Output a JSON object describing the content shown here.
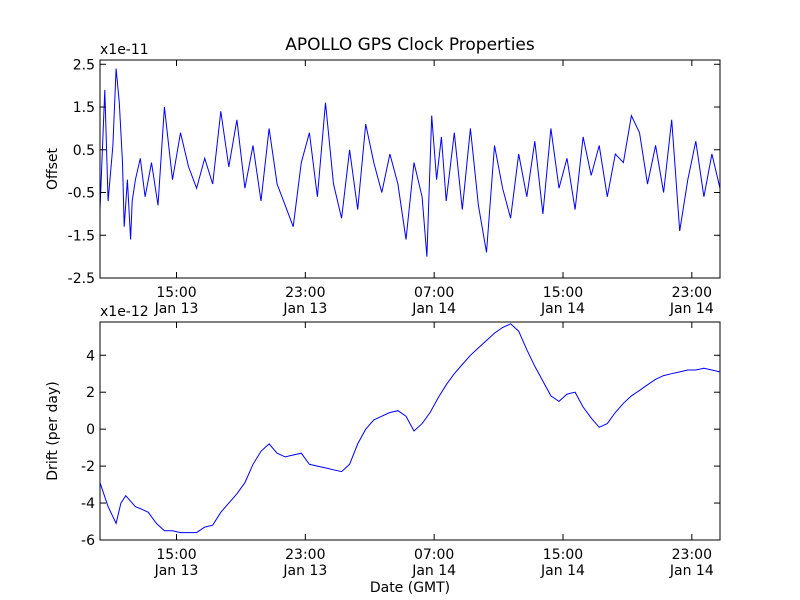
{
  "title": "APOLLO GPS Clock Properties",
  "colors": {
    "line": "#0000ff",
    "axes": "#000000",
    "background": "#ffffff"
  },
  "chart_data": [
    {
      "type": "line",
      "title": "APOLLO GPS Clock Properties",
      "ylabel": "Offset",
      "xlabel": "",
      "scale_label": "x1e-11",
      "x_unit": "hours since Jan 13 10:15 GMT",
      "xlim": [
        0,
        38.5
      ],
      "ylim": [
        -2.5,
        2.6
      ],
      "y_ticks": [
        -2.5,
        -1.5,
        -0.5,
        0.5,
        1.5,
        2.5
      ],
      "y_tick_labels": [
        "-2.5",
        "-1.5",
        "-0.5",
        "0.5",
        "1.5",
        "2.5"
      ],
      "x_ticks": [
        4.75,
        12.75,
        20.75,
        28.75,
        36.75
      ],
      "x_tick_labels": [
        [
          "15:00",
          "Jan 13"
        ],
        [
          "23:00",
          "Jan 13"
        ],
        [
          "07:00",
          "Jan 14"
        ],
        [
          "15:00",
          "Jan 14"
        ],
        [
          "23:00",
          "Jan 14"
        ]
      ],
      "grid": false,
      "series": [
        {
          "x": [
            0,
            0.3,
            0.5,
            0.8,
            1.0,
            1.2,
            1.4,
            1.5,
            1.7,
            1.9,
            2.0,
            2.2,
            2.5,
            2.8,
            3.2,
            3.6,
            4.0,
            4.5,
            5.0,
            5.5,
            6.0,
            6.5,
            7.0,
            7.5,
            8.0,
            8.5,
            9.0,
            9.5,
            10.0,
            10.5,
            11.0,
            11.5,
            12.0,
            12.5,
            13.0,
            13.5,
            14.0,
            14.5,
            15.0,
            15.5,
            16.0,
            16.5,
            17.0,
            17.5,
            18.0,
            18.5,
            19.0,
            19.5,
            20.0,
            20.3,
            20.6,
            20.9,
            21.2,
            21.5,
            22.0,
            22.5,
            23.0,
            23.5,
            24.0,
            24.5,
            25.0,
            25.5,
            26.0,
            26.5,
            27.0,
            27.5,
            28.0,
            28.5,
            29.0,
            29.5,
            30.0,
            30.5,
            31.0,
            31.5,
            32.0,
            32.5,
            33.0,
            33.5,
            34.0,
            34.5,
            35.0,
            35.5,
            36.0,
            36.5,
            37.0,
            37.5,
            38.0,
            38.5
          ],
          "y": [
            -0.9,
            1.9,
            -0.7,
            0.6,
            2.4,
            1.6,
            0.2,
            -1.3,
            -0.2,
            -1.6,
            -0.7,
            -0.2,
            0.3,
            -0.6,
            0.2,
            -0.8,
            1.5,
            -0.2,
            0.9,
            0.1,
            -0.4,
            0.3,
            -0.3,
            1.4,
            0.1,
            1.2,
            -0.4,
            0.6,
            -0.7,
            1.0,
            -0.3,
            -0.8,
            -1.3,
            0.2,
            0.9,
            -0.6,
            1.6,
            -0.3,
            -1.1,
            0.5,
            -0.9,
            1.1,
            0.2,
            -0.5,
            0.4,
            -0.3,
            -1.6,
            0.2,
            -0.6,
            -2.0,
            1.3,
            -0.2,
            0.8,
            -0.7,
            0.9,
            -0.9,
            1.0,
            -0.8,
            -1.9,
            0.6,
            -0.4,
            -1.1,
            0.4,
            -0.6,
            0.7,
            -1.0,
            1.0,
            -0.4,
            0.3,
            -0.9,
            0.8,
            -0.1,
            0.6,
            -0.6,
            0.4,
            0.2,
            1.3,
            0.9,
            -0.3,
            0.6,
            -0.5,
            1.2,
            -1.4,
            -0.2,
            0.7,
            -0.6,
            0.4,
            -0.4
          ]
        }
      ]
    },
    {
      "type": "line",
      "title": "",
      "ylabel": "Drift (per day)",
      "xlabel": "Date (GMT)",
      "scale_label": "x1e-12",
      "x_unit": "hours since Jan 13 10:15 GMT",
      "xlim": [
        0,
        38.5
      ],
      "ylim": [
        -6,
        5.8
      ],
      "y_ticks": [
        -6,
        -4,
        -2,
        0,
        2,
        4
      ],
      "y_tick_labels": [
        "-6",
        "-4",
        "-2",
        "0",
        "2",
        "4"
      ],
      "x_ticks": [
        4.75,
        12.75,
        20.75,
        28.75,
        36.75
      ],
      "x_tick_labels": [
        [
          "15:00",
          "Jan 13"
        ],
        [
          "23:00",
          "Jan 13"
        ],
        [
          "07:00",
          "Jan 14"
        ],
        [
          "15:00",
          "Jan 14"
        ],
        [
          "23:00",
          "Jan 14"
        ]
      ],
      "grid": false,
      "series": [
        {
          "x": [
            0,
            0.5,
            1.0,
            1.3,
            1.6,
            1.9,
            2.2,
            2.5,
            3.0,
            3.5,
            4.0,
            4.5,
            5.0,
            5.5,
            6.0,
            6.5,
            7.0,
            7.5,
            8.0,
            8.5,
            9.0,
            9.5,
            10.0,
            10.5,
            11.0,
            11.5,
            12.0,
            12.5,
            13.0,
            13.5,
            14.0,
            14.5,
            15.0,
            15.5,
            16.0,
            16.5,
            17.0,
            17.5,
            18.0,
            18.5,
            19.0,
            19.5,
            20.0,
            20.5,
            21.0,
            21.5,
            22.0,
            22.5,
            23.0,
            23.5,
            24.0,
            24.5,
            25.0,
            25.5,
            26.0,
            26.5,
            27.0,
            27.5,
            28.0,
            28.5,
            29.0,
            29.5,
            30.0,
            30.5,
            31.0,
            31.5,
            32.0,
            32.5,
            33.0,
            33.5,
            34.0,
            34.5,
            35.0,
            35.5,
            36.0,
            36.5,
            37.0,
            37.5,
            38.0,
            38.5
          ],
          "y": [
            -2.9,
            -4.2,
            -5.1,
            -4.0,
            -3.6,
            -3.9,
            -4.2,
            -4.3,
            -4.5,
            -5.1,
            -5.5,
            -5.5,
            -5.6,
            -5.6,
            -5.6,
            -5.3,
            -5.2,
            -4.5,
            -4.0,
            -3.5,
            -2.9,
            -1.9,
            -1.2,
            -0.8,
            -1.3,
            -1.5,
            -1.4,
            -1.3,
            -1.9,
            -2.0,
            -2.1,
            -2.2,
            -2.3,
            -1.9,
            -0.8,
            0,
            0.5,
            0.7,
            0.9,
            1.0,
            0.7,
            -0.1,
            0.3,
            0.9,
            1.7,
            2.4,
            3.0,
            3.5,
            4.0,
            4.4,
            4.8,
            5.2,
            5.5,
            5.7,
            5.3,
            4.3,
            3.4,
            2.6,
            1.8,
            1.5,
            1.9,
            2.0,
            1.2,
            0.6,
            0.1,
            0.3,
            0.9,
            1.4,
            1.8,
            2.1,
            2.4,
            2.7,
            2.9,
            3.0,
            3.1,
            3.2,
            3.2,
            3.3,
            3.2,
            3.1
          ]
        }
      ]
    }
  ]
}
